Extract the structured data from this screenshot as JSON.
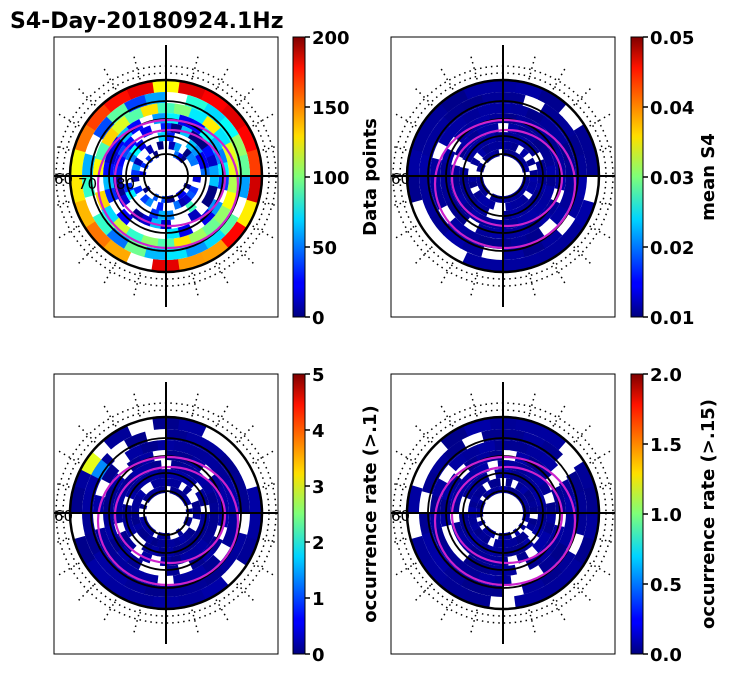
{
  "chart_data": [
    {
      "type": "heatmap",
      "title": "S4-Day-20180924.1Hz",
      "projection": "polar",
      "colorbar": {
        "label": "Data points",
        "min": 0,
        "max": 200,
        "ticks": [
          "0",
          "50",
          "100",
          "150",
          "200"
        ]
      },
      "visible_polar_tick_labels": [
        "60",
        "70",
        "80"
      ],
      "rings": [
        {
          "value_fraction": 0.78,
          "density": 0.9
        },
        {
          "value_fraction": 0.35,
          "density": 0.8
        },
        {
          "value_fraction": 0.5,
          "density": 0.85
        },
        {
          "value_fraction": 0.22,
          "density": 0.7
        },
        {
          "value_fraction": 0.15,
          "density": 0.75
        },
        {
          "value_fraction": 0.28,
          "density": 0.6
        },
        {
          "value_fraction": 0.12,
          "density": 0.5
        },
        {
          "value_fraction": 0.08,
          "density": 0.6
        }
      ]
    },
    {
      "type": "heatmap",
      "projection": "polar",
      "colorbar": {
        "label": "mean S4",
        "min": 0.01,
        "max": 0.05,
        "ticks": [
          "0.01",
          "0.02",
          "0.03",
          "0.04",
          "0.05"
        ]
      },
      "visible_polar_tick_labels": [
        "60"
      ],
      "rings_value_fraction": 0.01
    },
    {
      "type": "heatmap",
      "projection": "polar",
      "colorbar": {
        "label": "occurrence rate (>.1)",
        "min": 0,
        "max": 5,
        "ticks": [
          "0",
          "1",
          "2",
          "3",
          "4",
          "5"
        ]
      },
      "visible_polar_tick_labels": [
        "60"
      ],
      "rings_value_fraction": 0.01,
      "highlights": [
        {
          "position": "upper-left outer ring",
          "value": 3.0
        },
        {
          "position": "upper-left second ring",
          "value": 1.3
        }
      ]
    },
    {
      "type": "heatmap",
      "projection": "polar",
      "colorbar": {
        "label": "occurrence rate (>.15)",
        "min": 0.0,
        "max": 2.0,
        "ticks": [
          "0.0",
          "0.5",
          "1.0",
          "1.5",
          "2.0"
        ]
      },
      "visible_polar_tick_labels": [
        "60"
      ],
      "rings_value_fraction": 0.01
    }
  ]
}
